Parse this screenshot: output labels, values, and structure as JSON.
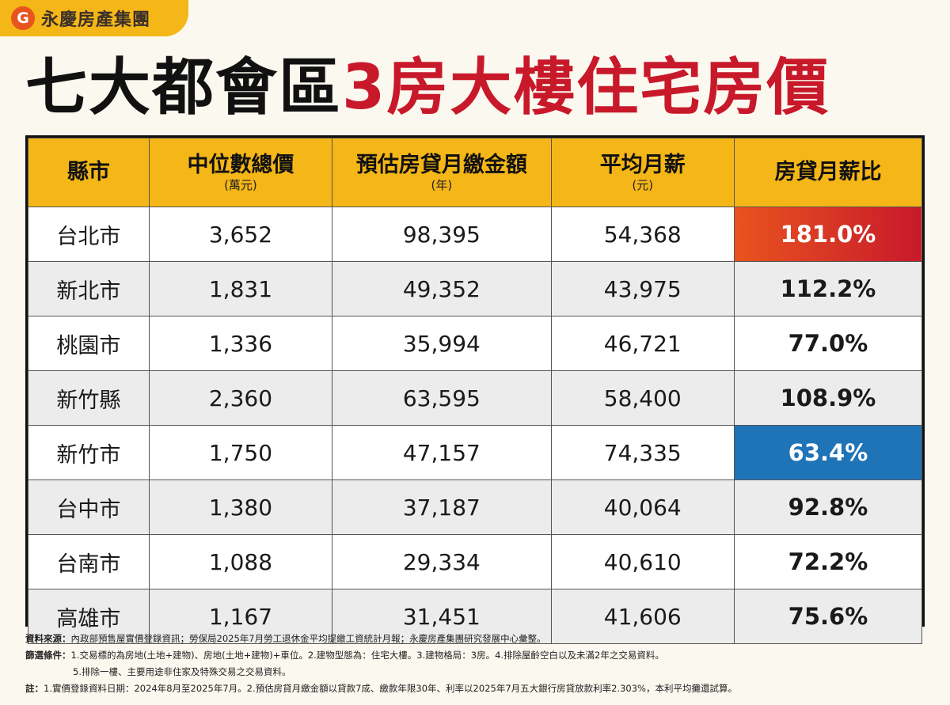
{
  "brand": {
    "logo_glyph": "G",
    "name": "永慶房產集團"
  },
  "headline": {
    "part1": "七大都會區",
    "part2": "3房大樓住宅房價",
    "color_red": "#c8192b"
  },
  "colors": {
    "header_bg": "#f5b617",
    "highlight_max": "#c8192b",
    "highlight_min": "#1f73b7"
  },
  "chart_data": {
    "type": "table",
    "title": "七大都會區3房大樓住宅房價",
    "columns": [
      {
        "label": "縣市",
        "unit": ""
      },
      {
        "label": "中位數總價",
        "unit": "(萬元)"
      },
      {
        "label": "預估房貸月繳金額",
        "unit": "(年)"
      },
      {
        "label": "平均月薪",
        "unit": "(元)"
      },
      {
        "label": "房貸月薪比",
        "unit": ""
      }
    ],
    "rows": [
      [
        "台北市",
        "3,652",
        "98,395",
        "54,368",
        "181.0%"
      ],
      [
        "新北市",
        "1,831",
        "49,352",
        "43,975",
        "112.2%"
      ],
      [
        "桃園市",
        "1,336",
        "35,994",
        "46,721",
        "77.0%"
      ],
      [
        "新竹縣",
        "2,360",
        "63,595",
        "58,400",
        "108.9%"
      ],
      [
        "新竹市",
        "1,750",
        "47,157",
        "74,335",
        "63.4%"
      ],
      [
        "台中市",
        "1,380",
        "37,187",
        "40,064",
        "92.8%"
      ],
      [
        "台南市",
        "1,088",
        "29,334",
        "40,610",
        "72.2%"
      ],
      [
        "高雄市",
        "1,167",
        "31,451",
        "41,606",
        "75.6%"
      ]
    ],
    "highlight_max_row": 0,
    "highlight_min_row": 4
  },
  "notes": {
    "source_label": "資料來源：",
    "source_text": "內政部預售屋實價登錄資訊；勞保局2025年7月勞工退休金平均提繳工資統計月報；永慶房產集團研究發展中心彙整。",
    "filter_label": "篩選條件：",
    "filter_text_1": "1.交易標的為房地(土地+建物)、房地(土地+建物)+車位。2.建物型態為：住宅大樓。3.建物格局：3房。4.排除屋齡空白以及未滿2年之交易資料。",
    "filter_text_2": "5.排除一樓、主要用途非住家及特殊交易之交易資料。",
    "remark_label": "註：",
    "remark_text": "1.實價登錄資料日期：2024年8月至2025年7月。2.預估房貸月繳金額以貸款7成、繳款年限30年、利率以2025年7月五大銀行房貸放款利率2.303%，本利平均攤還試算。"
  }
}
